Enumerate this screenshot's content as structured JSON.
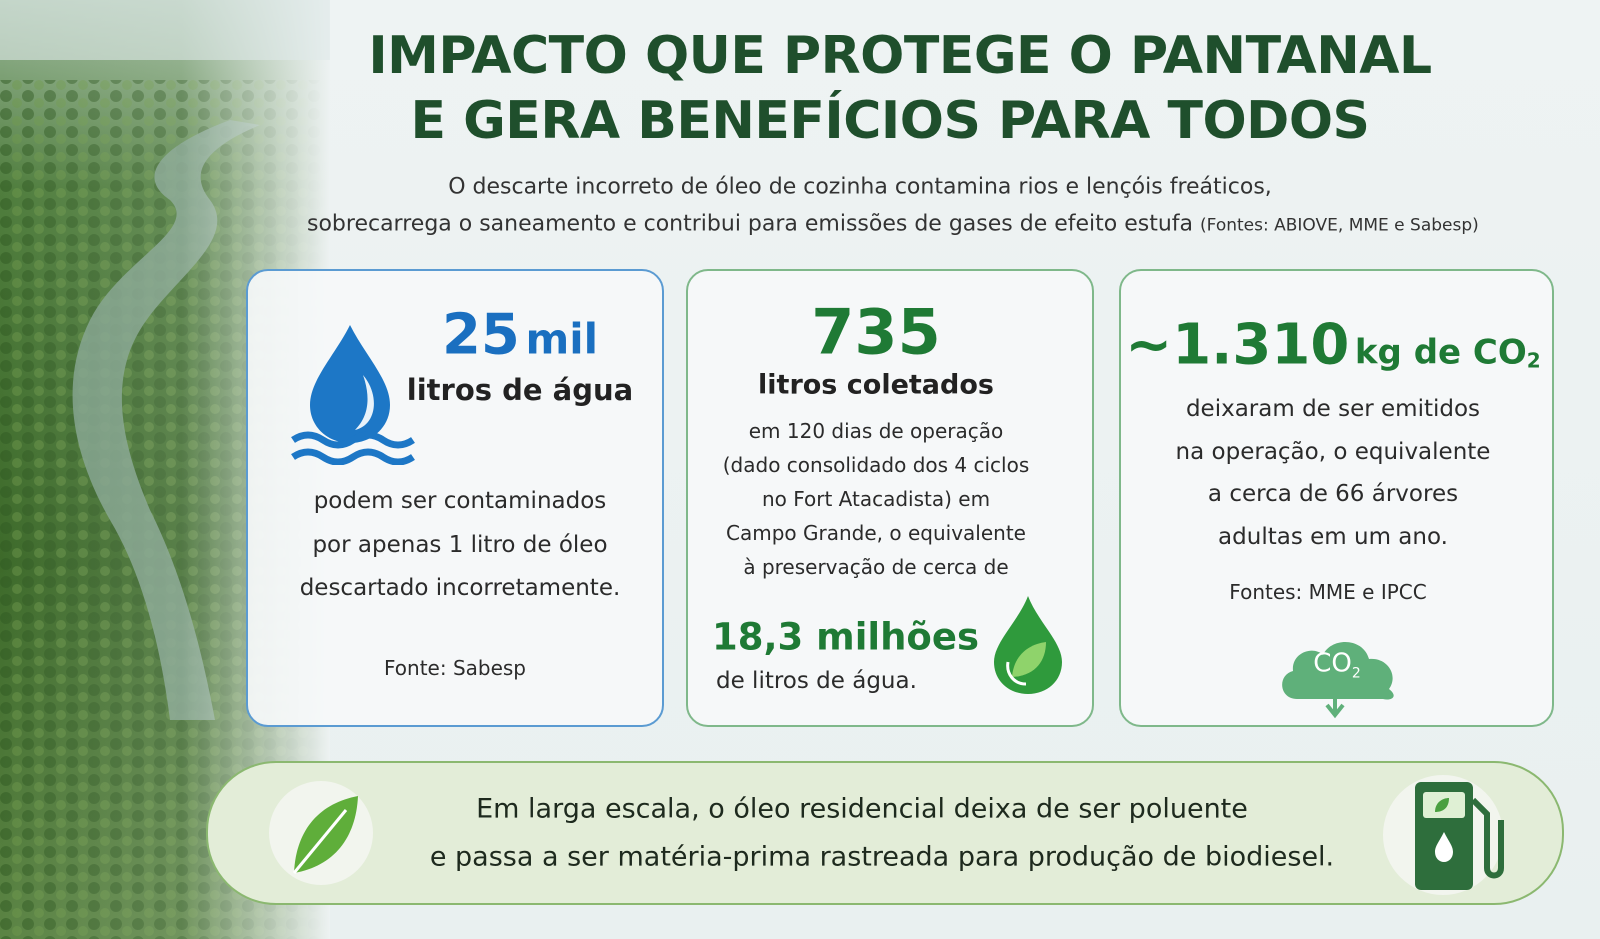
{
  "header": {
    "title": [
      "IMPACTO QUE PROTEGE O PANTANAL",
      "E GERA BENEFÍCIOS PARA TODOS"
    ],
    "subtitle": [
      "O descarte incorreto de óleo de cozinha contamina rios e lençóis freáticos,",
      "sobrecarrega o saneamento e contribui para emissões de gases de efeito estufa"
    ],
    "sources": "(Fontes: ABIOVE, MME e Sabesp)"
  },
  "cards": [
    {
      "number": "25",
      "unit": "mil",
      "label": "litros de água",
      "text": [
        "podem ser contaminados",
        "por apenas 1 litro de óleo",
        "descartado incorretamente."
      ],
      "source": "Fonte: Sabesp"
    },
    {
      "number": "735",
      "label": "litros coletados",
      "text": [
        "em 120 dias de operação",
        "(dado consolidado dos 4 ciclos",
        "no Fort Atacadista) em",
        "Campo Grande, o equivalente",
        "à preservação de cerca de"
      ],
      "highlight": "18,3 milhões",
      "highlight_text": "de litros de água."
    },
    {
      "number": "~1.310",
      "unit": "kg de CO",
      "unit_sub": "2",
      "text": [
        "deixaram de ser emitidos",
        "na operação, o equivalente",
        "a cerca de 66 árvores",
        "adultas em um ano."
      ],
      "source": "Fontes: MME e IPCC",
      "icon_text": "CO",
      "icon_sub": "2"
    }
  ],
  "footer": [
    "Em larga escala, o óleo residencial deixa de ser poluente",
    "e passa a ser matéria-prima rastreada para produção de biodiesel."
  ]
}
